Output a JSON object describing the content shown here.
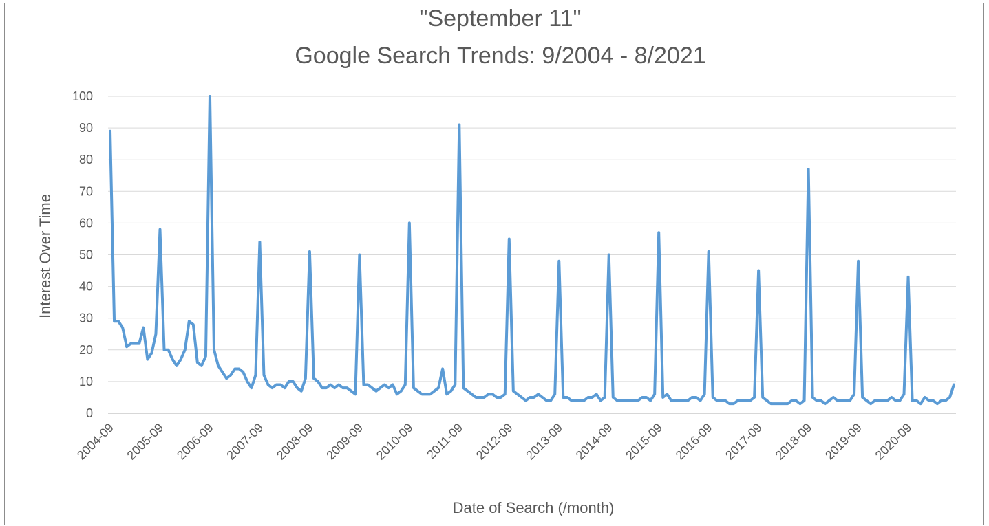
{
  "chart_data": {
    "type": "line",
    "title": "\"September 11\"",
    "subtitle": "Google Search Trends: 9/2004 - 8/2021",
    "xlabel": "Date of Search (/month)",
    "ylabel": "Interest Over  Time",
    "ylim": [
      0,
      100
    ],
    "yticks": [
      0,
      10,
      20,
      30,
      40,
      50,
      60,
      70,
      80,
      90,
      100
    ],
    "xtick_labels": [
      "2004-09",
      "2005-09",
      "2006-09",
      "2007-09",
      "2008-09",
      "2009-09",
      "2010-09",
      "2011-09",
      "2012-09",
      "2013-09",
      "2014-09",
      "2015-09",
      "2016-09",
      "2017-09",
      "2018-09",
      "2019-09",
      "2020-09"
    ],
    "grid": "horizontal",
    "line_color": "#5b9bd5",
    "series": [
      {
        "values": [
          89,
          29,
          29,
          27,
          21,
          22,
          22,
          22,
          27,
          17,
          19,
          25,
          58,
          20,
          20,
          17,
          15,
          17,
          20,
          29,
          28,
          16,
          15,
          18,
          100,
          20,
          15,
          13,
          11,
          12,
          14,
          14,
          13,
          10,
          8,
          12,
          54,
          12,
          9,
          8,
          9,
          9,
          8,
          10,
          10,
          8,
          7,
          11,
          51,
          11,
          10,
          8,
          8,
          9,
          8,
          9,
          8,
          8,
          7,
          6,
          50,
          9,
          9,
          8,
          7,
          8,
          9,
          8,
          9,
          6,
          7,
          9,
          60,
          8,
          7,
          6,
          6,
          6,
          7,
          8,
          14,
          6,
          7,
          9,
          91,
          8,
          7,
          6,
          5,
          5,
          5,
          6,
          6,
          5,
          5,
          6,
          55,
          7,
          6,
          5,
          4,
          5,
          5,
          6,
          5,
          4,
          4,
          6,
          48,
          5,
          5,
          4,
          4,
          4,
          4,
          5,
          5,
          6,
          4,
          5,
          50,
          5,
          4,
          4,
          4,
          4,
          4,
          4,
          5,
          5,
          4,
          6,
          57,
          5,
          6,
          4,
          4,
          4,
          4,
          4,
          5,
          5,
          4,
          6,
          51,
          5,
          4,
          4,
          4,
          3,
          3,
          4,
          4,
          4,
          4,
          5,
          45,
          5,
          4,
          3,
          3,
          3,
          3,
          3,
          4,
          4,
          3,
          4,
          77,
          5,
          4,
          4,
          3,
          4,
          5,
          4,
          4,
          4,
          4,
          6,
          48,
          5,
          4,
          3,
          4,
          4,
          4,
          4,
          5,
          4,
          4,
          6,
          43,
          4,
          4,
          3,
          5,
          4,
          4,
          3,
          4,
          4,
          5,
          9
        ]
      }
    ]
  }
}
